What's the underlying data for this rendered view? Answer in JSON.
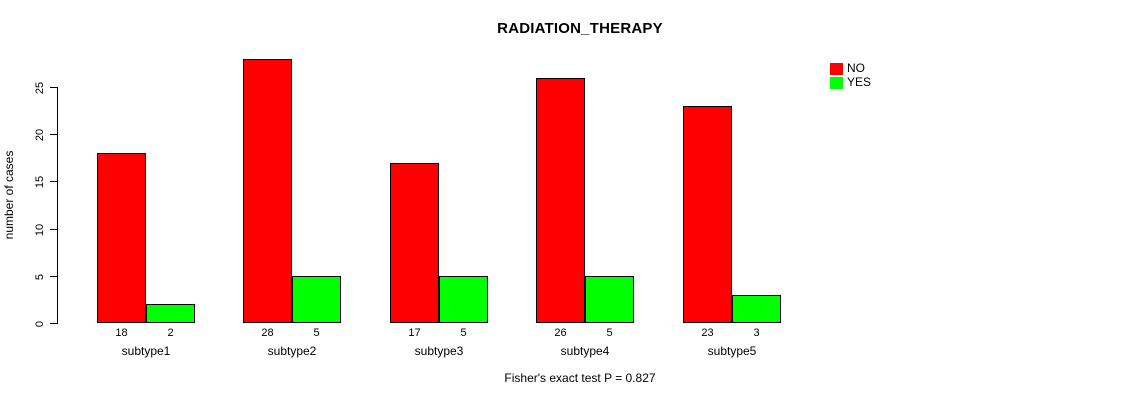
{
  "title": "RADIATION_THERAPY",
  "footer": "Fisher's exact test P = 0.827",
  "chart_data": {
    "type": "bar",
    "title": "RADIATION_THERAPY",
    "categories": [
      "subtype1",
      "subtype2",
      "subtype3",
      "subtype4",
      "subtype5"
    ],
    "series": [
      {
        "name": "NO",
        "color": "#ff0000",
        "values": [
          18,
          28,
          17,
          26,
          23
        ]
      },
      {
        "name": "YES",
        "color": "#00ff00",
        "values": [
          2,
          5,
          5,
          5,
          3
        ]
      }
    ],
    "xlabel": "",
    "ylabel": "number of cases",
    "yticks": [
      0,
      5,
      10,
      15,
      20,
      25
    ],
    "ylim": [
      0,
      28
    ],
    "bar_value_labels": true,
    "grid": false,
    "legend_position": "top-right",
    "annotation": "Fisher's exact test P = 0.827"
  },
  "legend": {
    "items": [
      {
        "label": "NO",
        "color": "#ff0000"
      },
      {
        "label": "YES",
        "color": "#00ff00"
      }
    ]
  }
}
